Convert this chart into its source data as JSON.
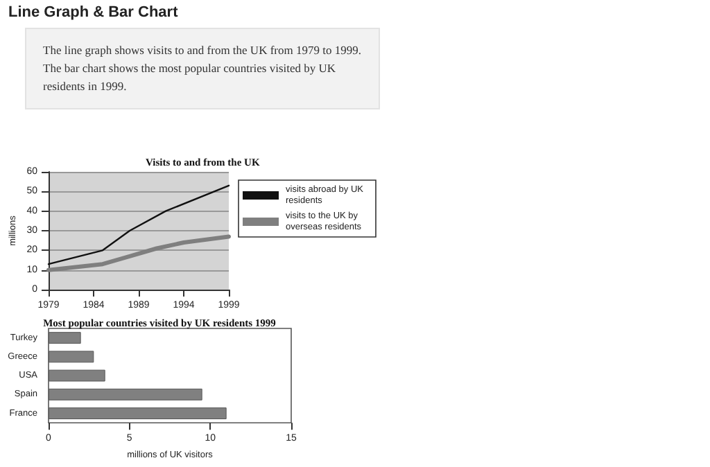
{
  "chart_data": [
    {
      "type": "other",
      "title": "Line Graph & Bar Chart",
      "annotations": [
        "The line graph shows visits to and from the UK from 1979 to 1999. The bar chart shows the most popular countries visited by UK residents in 1999."
      ]
    },
    {
      "type": "line",
      "title": "Visits to and from the UK",
      "ylabel": "millions",
      "xlim": [
        1979,
        1999
      ],
      "xticks": [
        1979,
        1984,
        1989,
        1994,
        1999
      ],
      "ylim": [
        0,
        60
      ],
      "yticks": [
        0,
        10,
        20,
        30,
        40,
        50,
        60
      ],
      "grid": "y",
      "legend": "right",
      "marker": "none",
      "series": [
        {
          "name": "visits abroad by UK residents",
          "color": "#111111",
          "x": [
            1979,
            1985,
            1988,
            1992,
            1999
          ],
          "values": [
            13,
            20,
            30,
            40,
            53
          ]
        },
        {
          "name": "visits to the UK by overseas residents",
          "color": "#7f7f7f",
          "x": [
            1979,
            1985,
            1988,
            1991,
            1994,
            1999
          ],
          "values": [
            10,
            13,
            17,
            21,
            24,
            27
          ]
        }
      ]
    },
    {
      "type": "bar",
      "orientation": "horizontal",
      "title": "Most popular countries visited by UK residents 1999",
      "xlabel": "millions of UK visitors",
      "categories": [
        "Turkey",
        "Greece",
        "USA",
        "Spain",
        "France"
      ],
      "values": [
        2,
        2.8,
        3.5,
        9.5,
        11
      ],
      "color": "#808080",
      "xlim": [
        0,
        15
      ],
      "xticks": [
        0,
        5,
        10,
        15
      ],
      "grid": false
    }
  ]
}
